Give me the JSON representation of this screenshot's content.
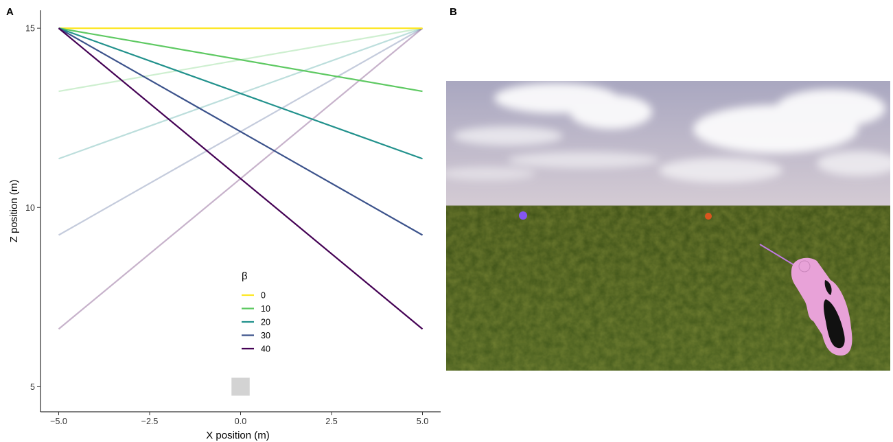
{
  "panels": {
    "a_label": "A",
    "b_label": "B"
  },
  "chart_data": {
    "type": "line",
    "xlabel": "X position (m)",
    "ylabel": "Z position (m)",
    "xlim": [
      -5.5,
      5.5
    ],
    "ylim": [
      4.3,
      15.5
    ],
    "x_ticks": [
      -5,
      -2.5,
      0,
      2.5,
      5
    ],
    "x_tick_labels": [
      "−5.0",
      "−2.5",
      "0.0",
      "2.5",
      "5.0"
    ],
    "y_ticks": [
      5,
      10,
      15
    ],
    "y_tick_labels": [
      "5",
      "10",
      "15"
    ],
    "grid": false,
    "legend": {
      "title": "β",
      "position": "inside-bottom-center",
      "entries": [
        "0",
        "10",
        "20",
        "30",
        "40"
      ]
    },
    "series": [
      {
        "name": "0",
        "color": "#FDE725",
        "x": [
          -5,
          5
        ],
        "y": [
          15.0,
          15.0
        ]
      },
      {
        "name": "10",
        "color": "#5EC962",
        "x": [
          -5,
          5
        ],
        "y": [
          15.0,
          13.24
        ]
      },
      {
        "name": "20",
        "color": "#21918C",
        "x": [
          -5,
          5
        ],
        "y": [
          15.0,
          11.36
        ]
      },
      {
        "name": "30",
        "color": "#3B528B",
        "x": [
          -5,
          5
        ],
        "y": [
          15.0,
          9.23
        ]
      },
      {
        "name": "40",
        "color": "#440154",
        "x": [
          -5,
          5
        ],
        "y": [
          15.0,
          6.61
        ]
      }
    ],
    "faded_series": [
      {
        "name": "10",
        "color": "#5EC962",
        "opacity": 0.3,
        "x": [
          -5,
          5
        ],
        "y": [
          13.24,
          15.0
        ]
      },
      {
        "name": "20",
        "color": "#21918C",
        "opacity": 0.3,
        "x": [
          -5,
          5
        ],
        "y": [
          11.36,
          15.0
        ]
      },
      {
        "name": "30",
        "color": "#3B528B",
        "opacity": 0.3,
        "x": [
          -5,
          5
        ],
        "y": [
          9.23,
          15.0
        ]
      },
      {
        "name": "40",
        "color": "#440154",
        "opacity": 0.3,
        "x": [
          -5,
          5
        ],
        "y": [
          6.61,
          15.0
        ]
      }
    ],
    "marker": {
      "shape": "square",
      "color": "#D3D3D3",
      "x": 0,
      "y": 5,
      "half_size": 0.25
    }
  },
  "scene": {
    "sky_top": "#A9A7C0",
    "sky_horizon": "#D4CBD4",
    "ground_near": "#435A1C",
    "ground_far": "#3C4F16",
    "blue_target_color": "#8455F2",
    "orange_target_color": "#D9551E",
    "gun_color": "#E8A2D8",
    "gun_grip_color": "#111111",
    "laser_color": "#C07AE0"
  }
}
